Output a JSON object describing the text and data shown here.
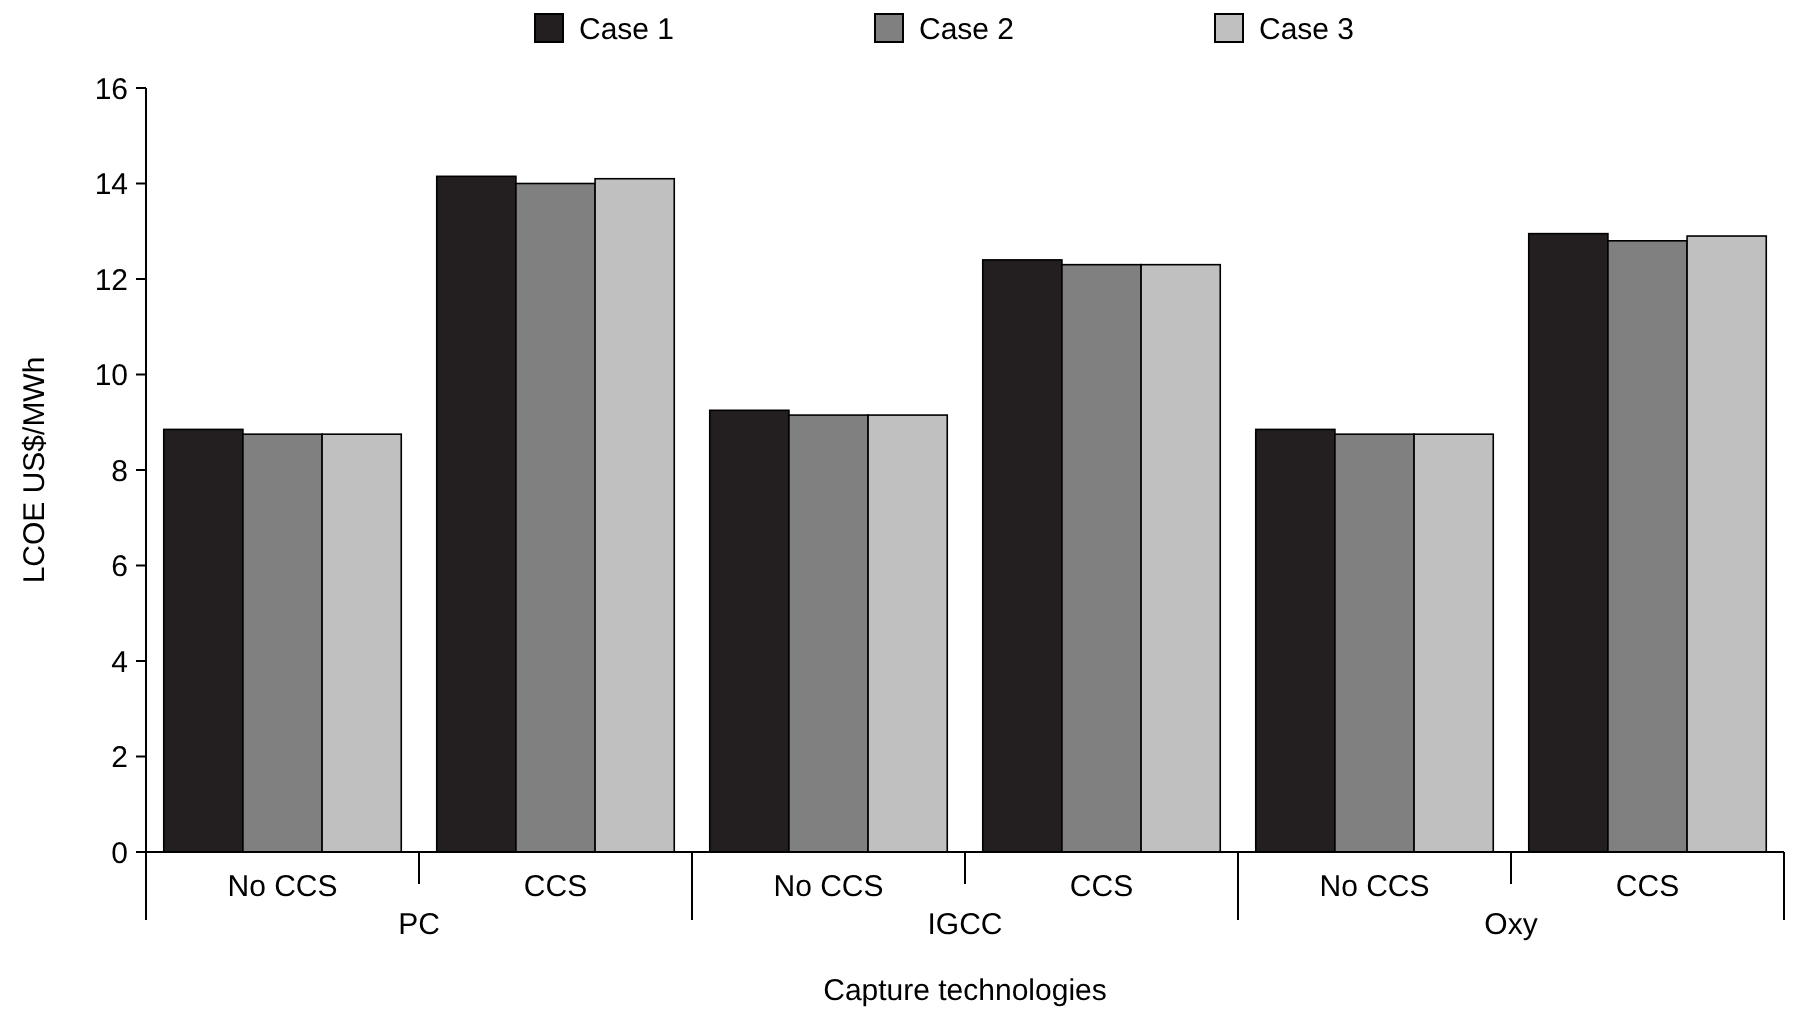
{
  "chart_data": {
    "type": "bar",
    "xlabel": "Capture technologies",
    "ylabel": "LCOE US$/MWh",
    "categories": [
      "No CCS",
      "CCS",
      "No CCS",
      "CCS",
      "No CCS",
      "CCS"
    ],
    "series": [
      {
        "name": "Case 1",
        "color": "#231f20",
        "values": [
          8.85,
          14.15,
          9.25,
          12.4,
          8.85,
          12.95
        ]
      },
      {
        "name": "Case 2",
        "color": "#808080",
        "values": [
          8.75,
          14.0,
          9.15,
          12.3,
          8.75,
          12.8
        ]
      },
      {
        "name": "Case 3",
        "color": "#c0c0c0",
        "values": [
          8.75,
          14.1,
          9.15,
          12.3,
          8.75,
          12.9
        ]
      }
    ],
    "annotations": [
      "PC",
      "IGCC",
      "Oxy"
    ],
    "ylim": [
      0,
      16
    ],
    "yticks": [
      0,
      2,
      4,
      6,
      8,
      10,
      12,
      14,
      16
    ],
    "grid": false,
    "legend": "top"
  }
}
